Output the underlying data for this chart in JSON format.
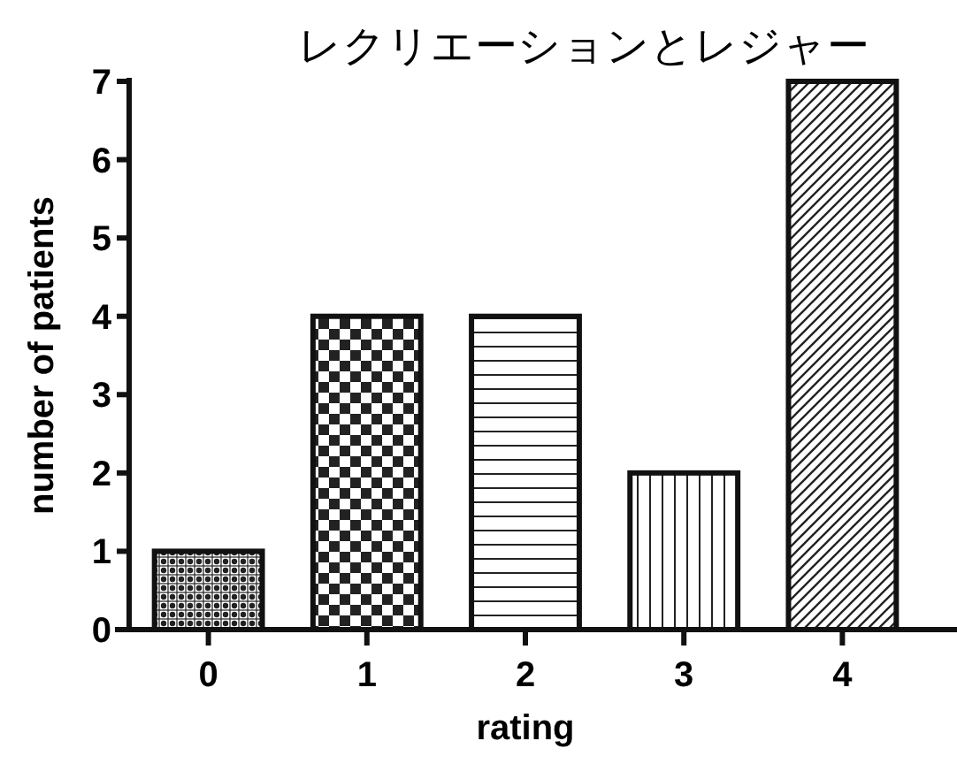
{
  "chart_data": {
    "type": "bar",
    "title": "レクリエーションとレジャー",
    "xlabel": "rating",
    "ylabel": "number of patients",
    "categories": [
      "0",
      "1",
      "2",
      "3",
      "4"
    ],
    "values": [
      1,
      4,
      4,
      2,
      7
    ],
    "ylim": [
      0,
      7
    ],
    "yticks": [
      0,
      1,
      2,
      3,
      4,
      5,
      6,
      7
    ]
  }
}
